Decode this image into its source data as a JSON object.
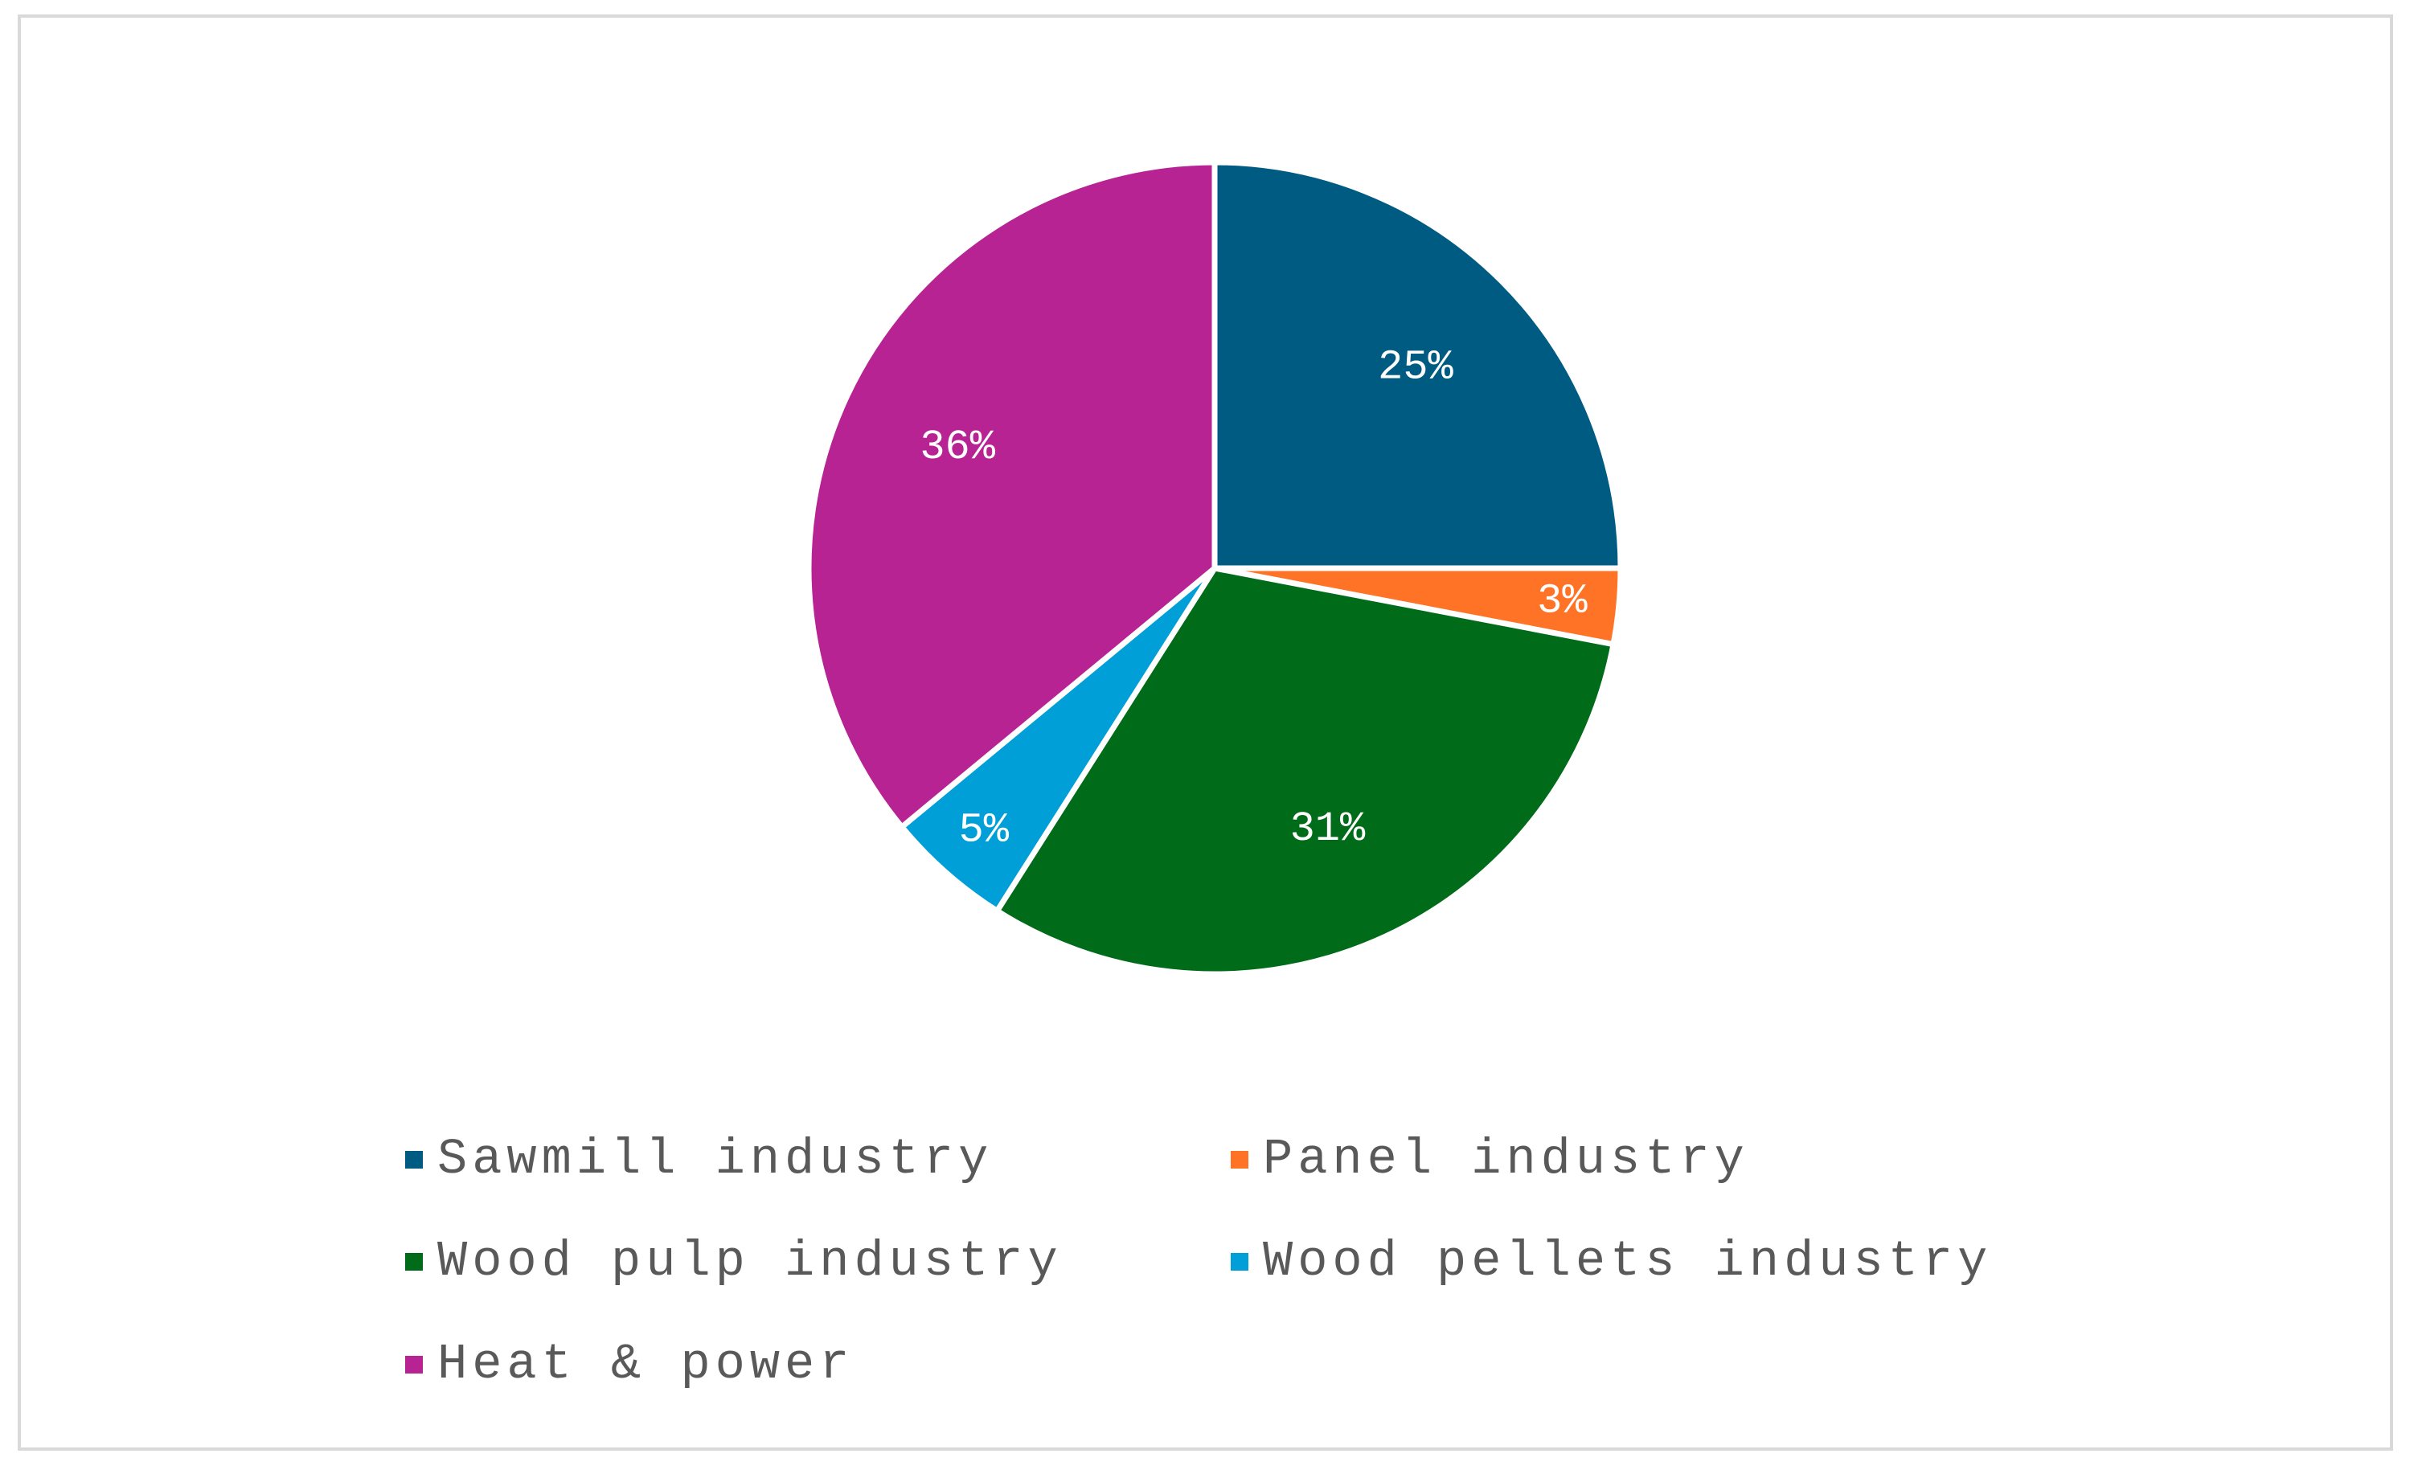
{
  "chart_data": {
    "type": "pie",
    "title": "",
    "unit": "%",
    "slices": [
      {
        "name": "Sawmill industry",
        "value": 25,
        "label": "25%",
        "color": "#005b82"
      },
      {
        "name": "Panel industry",
        "value": 3,
        "label": "3%",
        "color": "#ff7327"
      },
      {
        "name": "Wood pulp industry",
        "value": 31,
        "label": "31%",
        "color": "#006b18"
      },
      {
        "name": "Wood pellets industry",
        "value": 5,
        "label": "5%",
        "color": "#009fd8"
      },
      {
        "name": "Heat & power",
        "value": 36,
        "label": "36%",
        "color": "#b72392"
      }
    ],
    "start": "12 o'clock",
    "direction": "clockwise",
    "legend_position": "bottom",
    "legend_columns": 2
  },
  "colors": {
    "frame_border": "#d9d9d9",
    "legend_text": "#595959",
    "data_label_text": "#ffffff",
    "slice_separator": "#ffffff"
  }
}
